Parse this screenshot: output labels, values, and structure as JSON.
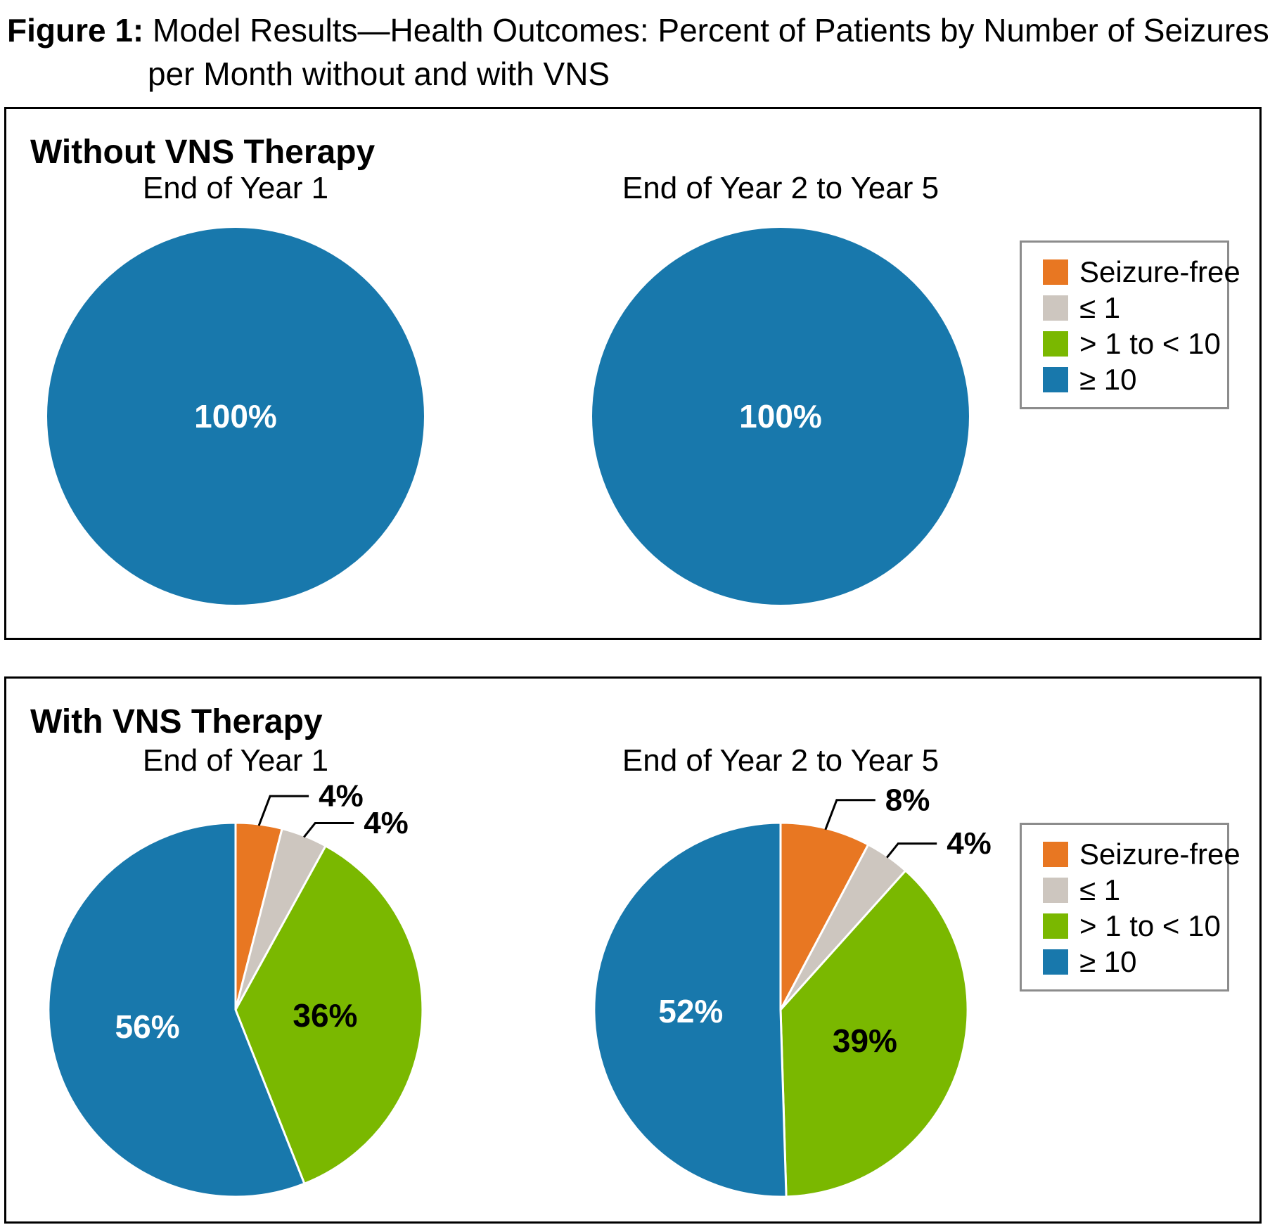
{
  "figure_title": {
    "label": "Figure 1:",
    "line1": "Model Results—Health Outcomes: Percent of Patients by Number of Seizures",
    "line2": "per Month without and with VNS"
  },
  "panels": [
    {
      "title": "Without VNS Therapy"
    },
    {
      "title": "With VNS Therapy"
    }
  ],
  "legend": {
    "items": [
      {
        "key": "seizure_free",
        "label": "Seizure-free",
        "color": "#E87722"
      },
      {
        "key": "le1",
        "label": "≤ 1",
        "color": "#CDC6BF"
      },
      {
        "key": "gt1_lt10",
        "label": "> 1 to < 10",
        "color": "#7AB800"
      },
      {
        "key": "ge10",
        "label": "≥ 10",
        "color": "#1878AC"
      }
    ],
    "border_color": "#8C8C8C"
  },
  "colors": {
    "seizure_free": "#E87722",
    "le1": "#CDC6BF",
    "gt1_lt10": "#7AB800",
    "ge10": "#1878AC",
    "panel_border": "#000000"
  },
  "chart_data": [
    {
      "type": "pie",
      "group": "Without VNS Therapy",
      "title": "End of Year 1",
      "categories": [
        "Seizure-free",
        "≤ 1",
        "> 1 to < 10",
        "≥ 10"
      ],
      "values": [
        0,
        0,
        0,
        100
      ],
      "slice_labels": [
        "",
        "",
        "",
        "100%"
      ],
      "colors": [
        "#E87722",
        "#CDC6BF",
        "#7AB800",
        "#1878AC"
      ],
      "label_colors": [
        "#000000",
        "#000000",
        "#000000",
        "#FFFFFF"
      ],
      "legend_position": "right"
    },
    {
      "type": "pie",
      "group": "Without VNS Therapy",
      "title": "End of Year 2 to Year 5",
      "categories": [
        "Seizure-free",
        "≤ 1",
        "> 1 to < 10",
        "≥ 10"
      ],
      "values": [
        0,
        0,
        0,
        100
      ],
      "slice_labels": [
        "",
        "",
        "",
        "100%"
      ],
      "colors": [
        "#E87722",
        "#CDC6BF",
        "#7AB800",
        "#1878AC"
      ],
      "label_colors": [
        "#000000",
        "#000000",
        "#000000",
        "#FFFFFF"
      ],
      "legend_position": "right"
    },
    {
      "type": "pie",
      "group": "With VNS Therapy",
      "title": "End of Year 1",
      "categories": [
        "Seizure-free",
        "≤ 1",
        "> 1 to < 10",
        "≥ 10"
      ],
      "values": [
        4,
        4,
        36,
        56
      ],
      "slice_labels": [
        "4%",
        "4%",
        "36%",
        "56%"
      ],
      "colors": [
        "#E87722",
        "#CDC6BF",
        "#7AB800",
        "#1878AC"
      ],
      "label_colors": [
        "#000000",
        "#000000",
        "#000000",
        "#FFFFFF"
      ],
      "legend_position": "right"
    },
    {
      "type": "pie",
      "group": "With VNS Therapy",
      "title": "End of Year 2 to Year 5",
      "categories": [
        "Seizure-free",
        "≤ 1",
        "> 1 to < 10",
        "≥ 10"
      ],
      "values": [
        8,
        4,
        39,
        52
      ],
      "slice_labels": [
        "8%",
        "4%",
        "39%",
        "52%"
      ],
      "colors": [
        "#E87722",
        "#CDC6BF",
        "#7AB800",
        "#1878AC"
      ],
      "label_colors": [
        "#000000",
        "#000000",
        "#000000",
        "#FFFFFF"
      ],
      "legend_position": "right"
    }
  ]
}
